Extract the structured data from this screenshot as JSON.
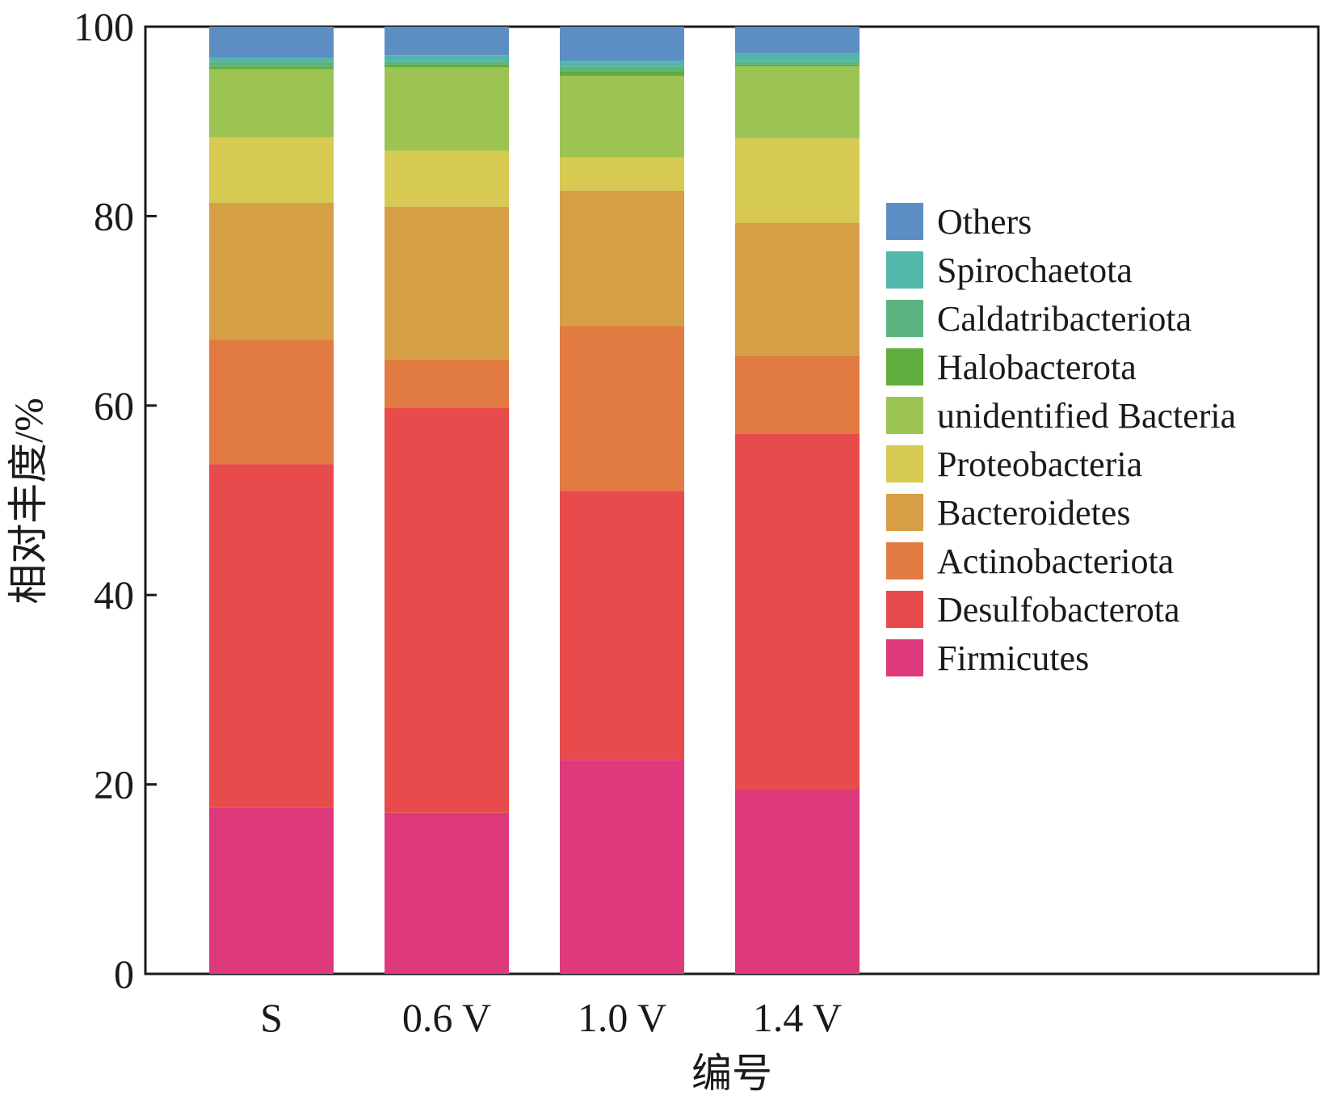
{
  "chart_data": {
    "type": "bar",
    "stacked": true,
    "xlabel": "编号",
    "ylabel": "相对丰度/%",
    "ylim": [
      0,
      100
    ],
    "yticks": [
      0,
      20,
      40,
      60,
      80,
      100
    ],
    "categories": [
      "S",
      "0.6 V",
      "1.0 V",
      "1.4 V"
    ],
    "legend_position": "right",
    "series": [
      {
        "name": "Firmicutes",
        "color": "#de3a7b",
        "values": [
          17.5,
          17.0,
          22.6,
          19.5
        ]
      },
      {
        "name": "Desulfobacterota",
        "color": "#e84b4b",
        "values": [
          36.3,
          42.8,
          28.4,
          37.5
        ]
      },
      {
        "name": "Actinobacteriota",
        "color": "#e27b42",
        "values": [
          13.2,
          5.0,
          17.4,
          8.3
        ]
      },
      {
        "name": "Bacteroidetes",
        "color": "#d69e45",
        "values": [
          14.4,
          16.2,
          14.3,
          14.0
        ]
      },
      {
        "name": "Proteobacteria",
        "color": "#d6ca52",
        "values": [
          6.9,
          5.9,
          3.5,
          8.9
        ]
      },
      {
        "name": "unidentified Bacteria",
        "color": "#9dc453",
        "values": [
          7.2,
          8.8,
          8.6,
          7.6
        ]
      },
      {
        "name": "Halobacterota",
        "color": "#5fae3e",
        "values": [
          0.3,
          0.3,
          0.5,
          0.2
        ]
      },
      {
        "name": "Caldatribacteriota",
        "color": "#5cb37f",
        "values": [
          0.5,
          0.3,
          0.5,
          0.3
        ]
      },
      {
        "name": "Spirochaetota",
        "color": "#52b6aa",
        "values": [
          0.4,
          0.7,
          0.6,
          0.9
        ]
      },
      {
        "name": "Others",
        "color": "#5c8ec4",
        "values": [
          3.3,
          3.0,
          3.6,
          2.8
        ]
      }
    ],
    "legend_order": [
      "Others",
      "Spirochaetota",
      "Caldatribacteriota",
      "Halobacterota",
      "unidentified Bacteria",
      "Proteobacteria",
      "Bacteroidetes",
      "Actinobacteriota",
      "Desulfobacterota",
      "Firmicutes"
    ]
  }
}
